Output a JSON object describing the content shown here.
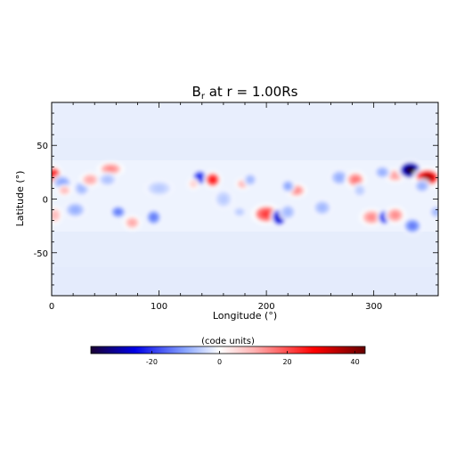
{
  "chart_data": {
    "type": "heatmap",
    "title": "B_r at r = 1.00Rs",
    "title_parts": {
      "main": "B",
      "sub": "r",
      "rest": " at r = 1.00Rs"
    },
    "xlabel": "Longitude (°)",
    "ylabel": "Latitude (°)",
    "xlim": [
      0,
      360
    ],
    "ylim": [
      -90,
      90
    ],
    "xticks": [
      0,
      100,
      200,
      300
    ],
    "yticks": [
      -50,
      0,
      50
    ],
    "x_minor_step": 20,
    "y_minor_step": 10,
    "colorbar": {
      "label": "(code units)",
      "range": [
        -38,
        43
      ],
      "ticks": [
        -20,
        0,
        20,
        40
      ],
      "stops": [
        {
          "v": -38,
          "color": "#1a0033"
        },
        {
          "v": -25,
          "color": "#0000e6"
        },
        {
          "v": -10,
          "color": "#8aa6ff"
        },
        {
          "v": 0,
          "color": "#ffffff"
        },
        {
          "v": 10,
          "color": "#ffb3b3"
        },
        {
          "v": 28,
          "color": "#ff0000"
        },
        {
          "v": 43,
          "color": "#660000"
        }
      ]
    },
    "features": [
      {
        "lon": 2,
        "lat": 22,
        "value": 28,
        "w": 6,
        "h": 7
      },
      {
        "lon": 3,
        "lat": -15,
        "value": 9,
        "w": 5,
        "h": 6
      },
      {
        "lon": 10,
        "lat": 15,
        "value": -10,
        "w": 7,
        "h": 6
      },
      {
        "lon": 12,
        "lat": 8,
        "value": 9,
        "w": 5,
        "h": 4
      },
      {
        "lon": 22,
        "lat": -10,
        "value": -9,
        "w": 8,
        "h": 6
      },
      {
        "lon": 28,
        "lat": 10,
        "value": -8,
        "w": 6,
        "h": 6
      },
      {
        "lon": 36,
        "lat": 18,
        "value": 11,
        "w": 7,
        "h": 5
      },
      {
        "lon": 55,
        "lat": 28,
        "value": 14,
        "w": 9,
        "h": 5
      },
      {
        "lon": 52,
        "lat": 18,
        "value": -7,
        "w": 7,
        "h": 5
      },
      {
        "lon": 62,
        "lat": -12,
        "value": -14,
        "w": 6,
        "h": 5
      },
      {
        "lon": 75,
        "lat": -22,
        "value": 11,
        "w": 6,
        "h": 5
      },
      {
        "lon": 95,
        "lat": -17,
        "value": -14,
        "w": 6,
        "h": 6
      },
      {
        "lon": 100,
        "lat": 10,
        "value": -6,
        "w": 10,
        "h": 6
      },
      {
        "lon": 138,
        "lat": 20,
        "value": -22,
        "w": 6,
        "h": 6
      },
      {
        "lon": 150,
        "lat": 18,
        "value": 27,
        "w": 6,
        "h": 6
      },
      {
        "lon": 132,
        "lat": 14,
        "value": 6,
        "w": 4,
        "h": 4
      },
      {
        "lon": 160,
        "lat": 0,
        "value": -6,
        "w": 7,
        "h": 7
      },
      {
        "lon": 178,
        "lat": 14,
        "value": 10,
        "w": 5,
        "h": 4
      },
      {
        "lon": 185,
        "lat": 18,
        "value": -8,
        "w": 5,
        "h": 5
      },
      {
        "lon": 175,
        "lat": -12,
        "value": -6,
        "w": 5,
        "h": 4
      },
      {
        "lon": 200,
        "lat": -14,
        "value": 22,
        "w": 10,
        "h": 7
      },
      {
        "lon": 212,
        "lat": -17,
        "value": -27,
        "w": 6,
        "h": 7
      },
      {
        "lon": 220,
        "lat": -12,
        "value": -8,
        "w": 6,
        "h": 6
      },
      {
        "lon": 228,
        "lat": 8,
        "value": 14,
        "w": 7,
        "h": 5
      },
      {
        "lon": 220,
        "lat": 12,
        "value": -10,
        "w": 5,
        "h": 5
      },
      {
        "lon": 252,
        "lat": -8,
        "value": -8,
        "w": 7,
        "h": 6
      },
      {
        "lon": 268,
        "lat": 20,
        "value": -9,
        "w": 7,
        "h": 6
      },
      {
        "lon": 283,
        "lat": 18,
        "value": 16,
        "w": 7,
        "h": 6
      },
      {
        "lon": 287,
        "lat": 8,
        "value": -6,
        "w": 5,
        "h": 5
      },
      {
        "lon": 298,
        "lat": -17,
        "value": 14,
        "w": 8,
        "h": 6
      },
      {
        "lon": 310,
        "lat": -17,
        "value": -22,
        "w": 5,
        "h": 6
      },
      {
        "lon": 320,
        "lat": -15,
        "value": 14,
        "w": 7,
        "h": 6
      },
      {
        "lon": 320,
        "lat": 22,
        "value": 12,
        "w": 7,
        "h": 5
      },
      {
        "lon": 308,
        "lat": 25,
        "value": -9,
        "w": 6,
        "h": 5
      },
      {
        "lon": 334,
        "lat": 27,
        "value": -38,
        "w": 9,
        "h": 7
      },
      {
        "lon": 350,
        "lat": 20,
        "value": 36,
        "w": 10,
        "h": 7
      },
      {
        "lon": 345,
        "lat": 12,
        "value": -9,
        "w": 6,
        "h": 5
      },
      {
        "lon": 336,
        "lat": -25,
        "value": -14,
        "w": 7,
        "h": 6
      },
      {
        "lon": 358,
        "lat": -12,
        "value": -8,
        "w": 5,
        "h": 5
      }
    ]
  }
}
